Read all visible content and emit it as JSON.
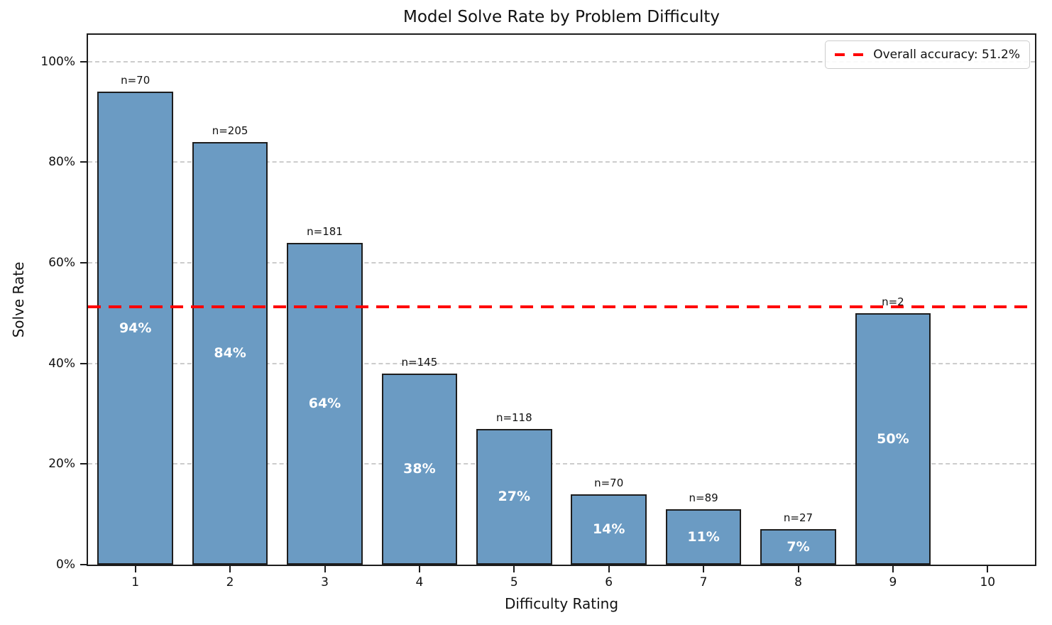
{
  "chart_data": {
    "type": "bar",
    "title": "Model Solve Rate by Problem Difficulty",
    "xlabel": "Difficulty Rating",
    "ylabel": "Solve Rate",
    "categories": [
      "1",
      "2",
      "3",
      "4",
      "5",
      "6",
      "7",
      "8",
      "9",
      "10"
    ],
    "values": [
      94,
      84,
      64,
      38,
      27,
      14,
      11,
      7,
      50,
      null
    ],
    "bar_value_labels": [
      "94%",
      "84%",
      "64%",
      "38%",
      "27%",
      "14%",
      "11%",
      "7%",
      "50%",
      null
    ],
    "bar_count_labels": [
      "n=70",
      "n=205",
      "n=181",
      "n=145",
      "n=118",
      "n=70",
      "n=89",
      "n=27",
      "n=2",
      null
    ],
    "yticks": [
      "0%",
      "20%",
      "40%",
      "60%",
      "80%",
      "100%"
    ],
    "ytick_values": [
      0,
      20,
      40,
      60,
      80,
      100
    ],
    "ylim": [
      0,
      105.3
    ],
    "bar_width_fraction": 0.8,
    "grid": "horizontal-dashed",
    "legend_position": "upper-right",
    "colors": {
      "bar_fill": "#6B9BC3",
      "bar_edge": "#1d1d1d",
      "grid": "#cccccc",
      "reference": "#FF0000"
    },
    "reference_line": {
      "value": 51.2,
      "label": "Overall accuracy: 51.2%",
      "style": "dashed"
    }
  }
}
